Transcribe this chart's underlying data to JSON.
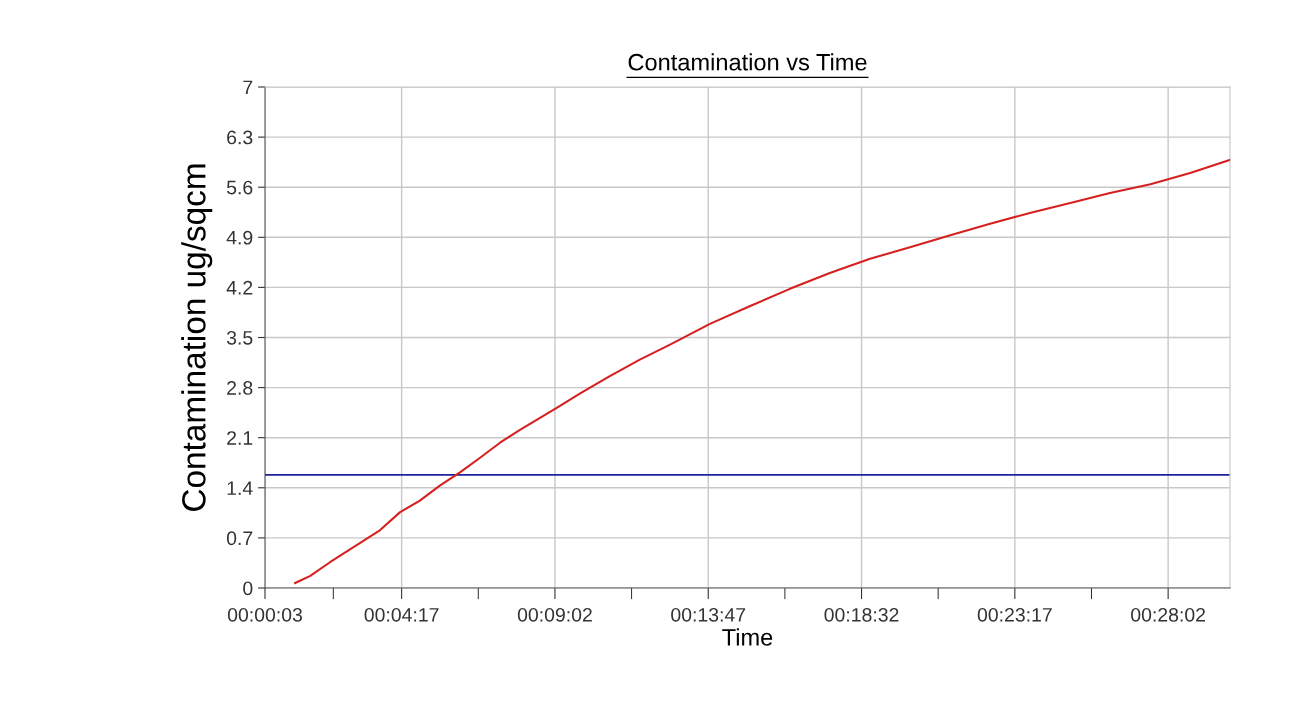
{
  "chart_data": {
    "type": "line",
    "title": "Contamination vs Time",
    "xlabel": "Time",
    "ylabel": "Contamination ug/sqcm",
    "series": [
      {
        "color": "#d62020",
        "x": [
          0.0164,
          0.0242,
          0.0344,
          0.05,
          0.0603,
          0.0706,
          0.0808,
          0.0911,
          0.1017,
          0.1119,
          0.1222,
          0.1325,
          0.1517,
          0.1636,
          0.1789,
          0.1944,
          0.21,
          0.2306,
          0.2514,
          0.2719,
          0.2925,
          0.3133,
          0.3339,
          0.3547,
          0.3753,
          0.3958,
          0.4167,
          0.4372,
          0.4581,
          0.4786,
          0.4991
        ],
        "values": [
          0.07,
          0.17,
          0.36,
          0.63,
          0.81,
          1.06,
          1.22,
          1.43,
          1.62,
          1.82,
          2.03,
          2.21,
          2.52,
          2.72,
          2.96,
          3.19,
          3.4,
          3.69,
          3.94,
          4.18,
          4.4,
          4.6,
          4.76,
          4.93,
          5.09,
          5.24,
          5.38,
          5.52,
          5.64,
          5.8,
          5.98
        ]
      }
    ],
    "ref_lines": [
      {
        "axis": "y",
        "value": 1.58,
        "color": "#1f1f9f",
        "line_style": "solid"
      }
    ],
    "xlim": [
      0.00083,
      0.49917
    ],
    "xticks": [
      {
        "value": 0.00083,
        "label": "00:00:03"
      },
      {
        "value": 0.03611,
        "label": null
      },
      {
        "value": 0.07139,
        "label": "00:04:17"
      },
      {
        "value": 0.11097,
        "label": null
      },
      {
        "value": 0.15056,
        "label": "00:09:02"
      },
      {
        "value": 0.19014,
        "label": null
      },
      {
        "value": 0.22972,
        "label": "00:13:47"
      },
      {
        "value": 0.26931,
        "label": null
      },
      {
        "value": 0.30889,
        "label": "00:18:32"
      },
      {
        "value": 0.34847,
        "label": null
      },
      {
        "value": 0.38806,
        "label": "00:23:17"
      },
      {
        "value": 0.42764,
        "label": null
      },
      {
        "value": 0.46722,
        "label": "00:28:02"
      }
    ],
    "ylim": [
      0,
      7
    ],
    "yticks": [
      0,
      0.7,
      1.4,
      2.1,
      2.8,
      3.5,
      4.2,
      4.9,
      5.6,
      6.3,
      7
    ],
    "grid": true,
    "legend": false,
    "marker": "none",
    "line_style": "solid"
  }
}
